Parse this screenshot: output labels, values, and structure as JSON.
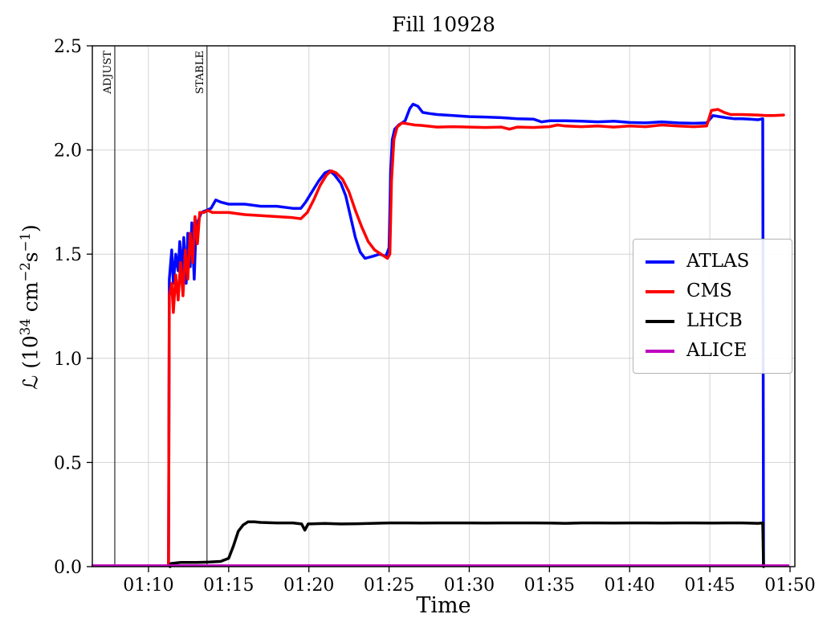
{
  "chart_data": {
    "type": "line",
    "title": "Fill 10928",
    "xlabel": "Time",
    "ylabel": "L (10^34 cm^-2 s^-1)",
    "ylabel_parts": {
      "script_l": "ℒ",
      "pre": " (10",
      "sup1": "34",
      "mid1": " cm",
      "sup2": "−2",
      "mid2": "s",
      "sup3": "−1",
      "post": ")"
    },
    "xlim": [
      66.5,
      110.3
    ],
    "ylim": [
      0,
      2.5
    ],
    "grid": true,
    "legend_position": "center right",
    "x_ticks": [
      {
        "v": 70,
        "label": "01:10"
      },
      {
        "v": 75,
        "label": "01:15"
      },
      {
        "v": 80,
        "label": "01:20"
      },
      {
        "v": 85,
        "label": "01:25"
      },
      {
        "v": 90,
        "label": "01:30"
      },
      {
        "v": 95,
        "label": "01:35"
      },
      {
        "v": 100,
        "label": "01:40"
      },
      {
        "v": 105,
        "label": "01:45"
      },
      {
        "v": 110,
        "label": "01:50"
      }
    ],
    "y_ticks": [
      {
        "v": 0.0,
        "label": "0.0"
      },
      {
        "v": 0.5,
        "label": "0.5"
      },
      {
        "v": 1.0,
        "label": "1.0"
      },
      {
        "v": 1.5,
        "label": "1.5"
      },
      {
        "v": 2.0,
        "label": "2.0"
      },
      {
        "v": 2.5,
        "label": "2.5"
      }
    ],
    "annotations": [
      {
        "label": "ADJUST",
        "x": 67.9
      },
      {
        "label": "STABLE",
        "x": 73.65
      }
    ],
    "series": [
      {
        "name": "ATLAS",
        "color": "#0008ff",
        "width": 3.5,
        "points": [
          [
            71.25,
            0.01
          ],
          [
            71.3,
            1.38
          ],
          [
            71.45,
            1.52
          ],
          [
            71.55,
            1.36
          ],
          [
            71.7,
            1.5
          ],
          [
            71.85,
            1.42
          ],
          [
            71.95,
            1.56
          ],
          [
            72.1,
            1.4
          ],
          [
            72.2,
            1.58
          ],
          [
            72.35,
            1.36
          ],
          [
            72.45,
            1.6
          ],
          [
            72.6,
            1.44
          ],
          [
            72.7,
            1.65
          ],
          [
            72.85,
            1.38
          ],
          [
            72.95,
            1.6
          ],
          [
            73.1,
            1.66
          ],
          [
            73.3,
            1.7
          ],
          [
            73.6,
            1.71
          ],
          [
            73.9,
            1.72
          ],
          [
            74.2,
            1.76
          ],
          [
            74.5,
            1.75
          ],
          [
            75,
            1.74
          ],
          [
            76,
            1.74
          ],
          [
            77,
            1.73
          ],
          [
            78,
            1.73
          ],
          [
            79,
            1.72
          ],
          [
            79.5,
            1.72
          ],
          [
            79.8,
            1.75
          ],
          [
            80.2,
            1.8
          ],
          [
            80.6,
            1.85
          ],
          [
            81,
            1.89
          ],
          [
            81.3,
            1.9
          ],
          [
            81.6,
            1.88
          ],
          [
            82,
            1.84
          ],
          [
            82.3,
            1.78
          ],
          [
            82.6,
            1.68
          ],
          [
            82.9,
            1.58
          ],
          [
            83.2,
            1.51
          ],
          [
            83.5,
            1.48
          ],
          [
            84,
            1.49
          ],
          [
            84.4,
            1.5
          ],
          [
            84.8,
            1.49
          ],
          [
            85,
            1.53
          ],
          [
            85.1,
            1.9
          ],
          [
            85.2,
            2.05
          ],
          [
            85.35,
            2.1
          ],
          [
            85.6,
            2.12
          ],
          [
            86,
            2.14
          ],
          [
            86.3,
            2.2
          ],
          [
            86.5,
            2.22
          ],
          [
            86.8,
            2.21
          ],
          [
            87.1,
            2.18
          ],
          [
            87.5,
            2.175
          ],
          [
            88,
            2.17
          ],
          [
            89,
            2.165
          ],
          [
            90,
            2.16
          ],
          [
            91,
            2.158
          ],
          [
            92,
            2.155
          ],
          [
            93,
            2.15
          ],
          [
            94,
            2.148
          ],
          [
            94.5,
            2.135
          ],
          [
            95,
            2.14
          ],
          [
            96,
            2.14
          ],
          [
            97,
            2.138
          ],
          [
            98,
            2.135
          ],
          [
            99,
            2.138
          ],
          [
            100,
            2.132
          ],
          [
            101,
            2.13
          ],
          [
            102,
            2.135
          ],
          [
            103,
            2.13
          ],
          [
            104,
            2.128
          ],
          [
            104.8,
            2.13
          ],
          [
            105.2,
            2.165
          ],
          [
            105.6,
            2.16
          ],
          [
            106,
            2.155
          ],
          [
            106.5,
            2.15
          ],
          [
            107,
            2.15
          ],
          [
            107.5,
            2.148
          ],
          [
            108,
            2.145
          ],
          [
            108.3,
            2.15
          ],
          [
            108.35,
            0.01
          ]
        ]
      },
      {
        "name": "CMS",
        "color": "#ff0000",
        "width": 3.5,
        "points": [
          [
            71.25,
            0.01
          ],
          [
            71.3,
            1.3
          ],
          [
            71.45,
            1.36
          ],
          [
            71.55,
            1.22
          ],
          [
            71.7,
            1.4
          ],
          [
            71.85,
            1.28
          ],
          [
            72,
            1.46
          ],
          [
            72.15,
            1.3
          ],
          [
            72.3,
            1.52
          ],
          [
            72.45,
            1.38
          ],
          [
            72.6,
            1.6
          ],
          [
            72.75,
            1.46
          ],
          [
            72.9,
            1.68
          ],
          [
            73.05,
            1.55
          ],
          [
            73.2,
            1.7
          ],
          [
            73.45,
            1.7
          ],
          [
            73.7,
            1.71
          ],
          [
            74,
            1.7
          ],
          [
            74.5,
            1.7
          ],
          [
            75,
            1.7
          ],
          [
            76,
            1.69
          ],
          [
            77,
            1.685
          ],
          [
            78,
            1.68
          ],
          [
            79,
            1.675
          ],
          [
            79.5,
            1.67
          ],
          [
            79.9,
            1.7
          ],
          [
            80.3,
            1.76
          ],
          [
            80.7,
            1.83
          ],
          [
            81.1,
            1.88
          ],
          [
            81.4,
            1.9
          ],
          [
            81.7,
            1.89
          ],
          [
            82.1,
            1.86
          ],
          [
            82.5,
            1.8
          ],
          [
            82.9,
            1.71
          ],
          [
            83.3,
            1.63
          ],
          [
            83.7,
            1.56
          ],
          [
            84.1,
            1.52
          ],
          [
            84.5,
            1.5
          ],
          [
            84.9,
            1.48
          ],
          [
            85.05,
            1.5
          ],
          [
            85.15,
            1.85
          ],
          [
            85.3,
            2.05
          ],
          [
            85.5,
            2.11
          ],
          [
            85.8,
            2.13
          ],
          [
            86.2,
            2.125
          ],
          [
            86.6,
            2.12
          ],
          [
            87,
            2.118
          ],
          [
            88,
            2.11
          ],
          [
            89,
            2.112
          ],
          [
            90,
            2.11
          ],
          [
            91,
            2.108
          ],
          [
            92,
            2.11
          ],
          [
            92.5,
            2.1
          ],
          [
            93,
            2.11
          ],
          [
            94,
            2.108
          ],
          [
            95,
            2.112
          ],
          [
            95.5,
            2.12
          ],
          [
            96,
            2.115
          ],
          [
            97,
            2.112
          ],
          [
            98,
            2.115
          ],
          [
            99,
            2.11
          ],
          [
            100,
            2.115
          ],
          [
            101,
            2.112
          ],
          [
            102,
            2.12
          ],
          [
            103,
            2.115
          ],
          [
            104,
            2.112
          ],
          [
            104.8,
            2.115
          ],
          [
            105.1,
            2.19
          ],
          [
            105.5,
            2.195
          ],
          [
            105.9,
            2.18
          ],
          [
            106.3,
            2.17
          ],
          [
            107,
            2.17
          ],
          [
            108,
            2.168
          ],
          [
            108.5,
            2.165
          ],
          [
            109,
            2.165
          ],
          [
            109.6,
            2.168
          ]
        ]
      },
      {
        "name": "LHCB",
        "color": "#000000",
        "width": 3.5,
        "points": [
          [
            71.35,
            0.0
          ],
          [
            71.4,
            0.015
          ],
          [
            72,
            0.02
          ],
          [
            73,
            0.02
          ],
          [
            73.8,
            0.022
          ],
          [
            74.5,
            0.025
          ],
          [
            75,
            0.04
          ],
          [
            75.3,
            0.1
          ],
          [
            75.6,
            0.17
          ],
          [
            75.9,
            0.2
          ],
          [
            76.2,
            0.215
          ],
          [
            76.6,
            0.215
          ],
          [
            77,
            0.212
          ],
          [
            78,
            0.21
          ],
          [
            79,
            0.21
          ],
          [
            79.55,
            0.205
          ],
          [
            79.75,
            0.175
          ],
          [
            79.95,
            0.205
          ],
          [
            81,
            0.207
          ],
          [
            82,
            0.205
          ],
          [
            83,
            0.206
          ],
          [
            84,
            0.208
          ],
          [
            85,
            0.21
          ],
          [
            86,
            0.21
          ],
          [
            87,
            0.209
          ],
          [
            88,
            0.21
          ],
          [
            89,
            0.21
          ],
          [
            90,
            0.21
          ],
          [
            91,
            0.209
          ],
          [
            92,
            0.21
          ],
          [
            93,
            0.21
          ],
          [
            94,
            0.21
          ],
          [
            95,
            0.209
          ],
          [
            96,
            0.208
          ],
          [
            97,
            0.21
          ],
          [
            98,
            0.21
          ],
          [
            99,
            0.209
          ],
          [
            100,
            0.21
          ],
          [
            101,
            0.21
          ],
          [
            102,
            0.209
          ],
          [
            103,
            0.21
          ],
          [
            104,
            0.21
          ],
          [
            105,
            0.209
          ],
          [
            106,
            0.21
          ],
          [
            107,
            0.21
          ],
          [
            108,
            0.208
          ],
          [
            108.3,
            0.21
          ],
          [
            108.35,
            0.0
          ]
        ]
      },
      {
        "name": "ALICE",
        "color": "#bf00bf",
        "width": 2.5,
        "points": [
          [
            66.5,
            0.006
          ],
          [
            109.9,
            0.006
          ]
        ]
      }
    ]
  }
}
